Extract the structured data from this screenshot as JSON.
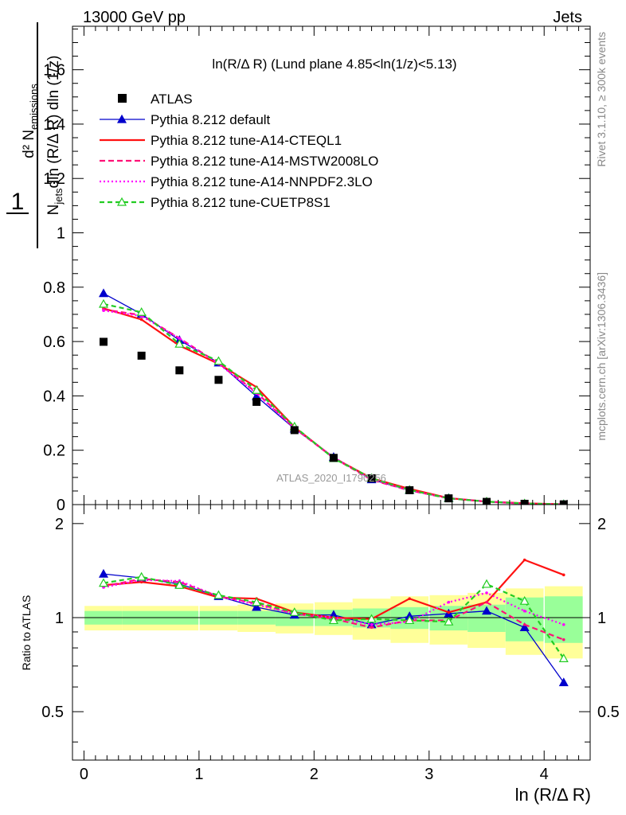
{
  "header": {
    "energy": "13000 GeV pp",
    "process": "Jets"
  },
  "side_labels": {
    "rivet": "Rivet 3.1.10, ≥ 300k events",
    "mcplots": "mcplots.cern.ch [arXiv:1306.3436]"
  },
  "watermark": "ATLAS_2020_I1790256",
  "chart_data": {
    "type": "scatter",
    "title": "ln(R/Δ R) (Lund plane 4.85<ln(1/z)<5.13)",
    "xlabel": "ln (R/Δ R)",
    "ylabel": "1/N_jets d²N_emissions / dln(R/ΔR) dln(1/z)",
    "ratio_ylabel": "Ratio to ATLAS",
    "xlim": [
      -0.1,
      4.4
    ],
    "ylim": [
      0,
      1.76
    ],
    "ratio_ylim": [
      0.35,
      2.3
    ],
    "x": [
      0.17,
      0.5,
      0.83,
      1.17,
      1.5,
      1.83,
      2.17,
      2.5,
      2.83,
      3.17,
      3.5,
      3.83,
      4.17
    ],
    "xticks": [
      0,
      1,
      2,
      3,
      4
    ],
    "yticks": [
      0.2,
      0.4,
      0.6,
      0.8,
      1,
      1.2,
      1.4,
      1.6
    ],
    "ytick_labels": [
      "0",
      "0.2",
      "0.4",
      "0.6",
      "0.8",
      "1",
      "1.2",
      "1.4",
      "1.6"
    ],
    "ratio_yticks": [
      0.5,
      1,
      2
    ],
    "legend_position": "top-left",
    "series": [
      {
        "name": "ATLAS",
        "style": "data",
        "color": "#000000",
        "values": [
          0.599,
          0.548,
          0.494,
          0.459,
          0.378,
          0.274,
          0.172,
          0.097,
          0.053,
          0.023,
          0.01,
          0.003,
          0.001
        ],
        "ratio": [
          1,
          1,
          1,
          1,
          1,
          1,
          1,
          1,
          1,
          1,
          1,
          1,
          1
        ]
      },
      {
        "name": "Pythia 8.212 default",
        "style": "solid",
        "marker": "triangle",
        "color": "#0000cc",
        "values": [
          0.777,
          0.701,
          0.605,
          0.522,
          0.398,
          0.279,
          0.175,
          0.092,
          0.053,
          0.024,
          0.01,
          0.003,
          0.001
        ],
        "ratio": [
          1.38,
          1.34,
          1.28,
          1.17,
          1.08,
          1.02,
          1.02,
          0.95,
          1.01,
          1.03,
          1.05,
          0.93,
          0.62
        ]
      },
      {
        "name": "Pythia 8.212 tune-A14-CTEQL1",
        "style": "solid",
        "color": "#ff1111",
        "values": [
          0.722,
          0.681,
          0.585,
          0.518,
          0.432,
          0.285,
          0.172,
          0.097,
          0.058,
          0.024,
          0.011,
          0.005,
          0.001
        ],
        "ratio": [
          1.27,
          1.3,
          1.26,
          1.16,
          1.15,
          1.04,
          1.0,
          0.99,
          1.15,
          1.04,
          1.12,
          1.53,
          1.37
        ]
      },
      {
        "name": "Pythia 8.212 tune-A14-MSTW2008LO",
        "style": "dashed",
        "color": "#ff1177",
        "values": [
          0.718,
          0.697,
          0.612,
          0.52,
          0.412,
          0.281,
          0.172,
          0.091,
          0.052,
          0.023,
          0.011,
          0.003,
          0.001
        ],
        "ratio": [
          1.26,
          1.33,
          1.3,
          1.17,
          1.11,
          1.03,
          0.99,
          0.93,
          0.98,
          0.98,
          1.12,
          0.95,
          0.85
        ]
      },
      {
        "name": "Pythia 8.212 tune-A14-NNPDF2.3LO",
        "style": "dotted",
        "color": "#ff00ff",
        "values": [
          0.714,
          0.694,
          0.611,
          0.518,
          0.409,
          0.282,
          0.174,
          0.093,
          0.052,
          0.024,
          0.011,
          0.004,
          0.001
        ],
        "ratio": [
          1.25,
          1.32,
          1.31,
          1.17,
          1.1,
          1.03,
          1.0,
          0.95,
          0.97,
          1.12,
          1.2,
          1.05,
          0.95
        ]
      },
      {
        "name": "Pythia 8.212 tune-CUETP8S1",
        "style": "dashed-hollow",
        "marker": "triangle-open",
        "color": "#22cc22",
        "values": [
          0.738,
          0.708,
          0.591,
          0.528,
          0.421,
          0.287,
          0.17,
          0.097,
          0.054,
          0.023,
          0.011,
          0.004,
          0.001
        ],
        "ratio": [
          1.29,
          1.35,
          1.27,
          1.18,
          1.12,
          1.04,
          0.98,
          0.99,
          0.98,
          0.97,
          1.28,
          1.13,
          0.74
        ]
      }
    ],
    "stat_band": [
      0.05,
      0.05,
      0.05,
      0.05,
      0.05,
      0.06,
      0.06,
      0.07,
      0.08,
      0.09,
      0.1,
      0.16,
      0.17
    ],
    "total_band": [
      0.09,
      0.09,
      0.09,
      0.09,
      0.1,
      0.11,
      0.12,
      0.15,
      0.17,
      0.18,
      0.2,
      0.24,
      0.26
    ]
  }
}
